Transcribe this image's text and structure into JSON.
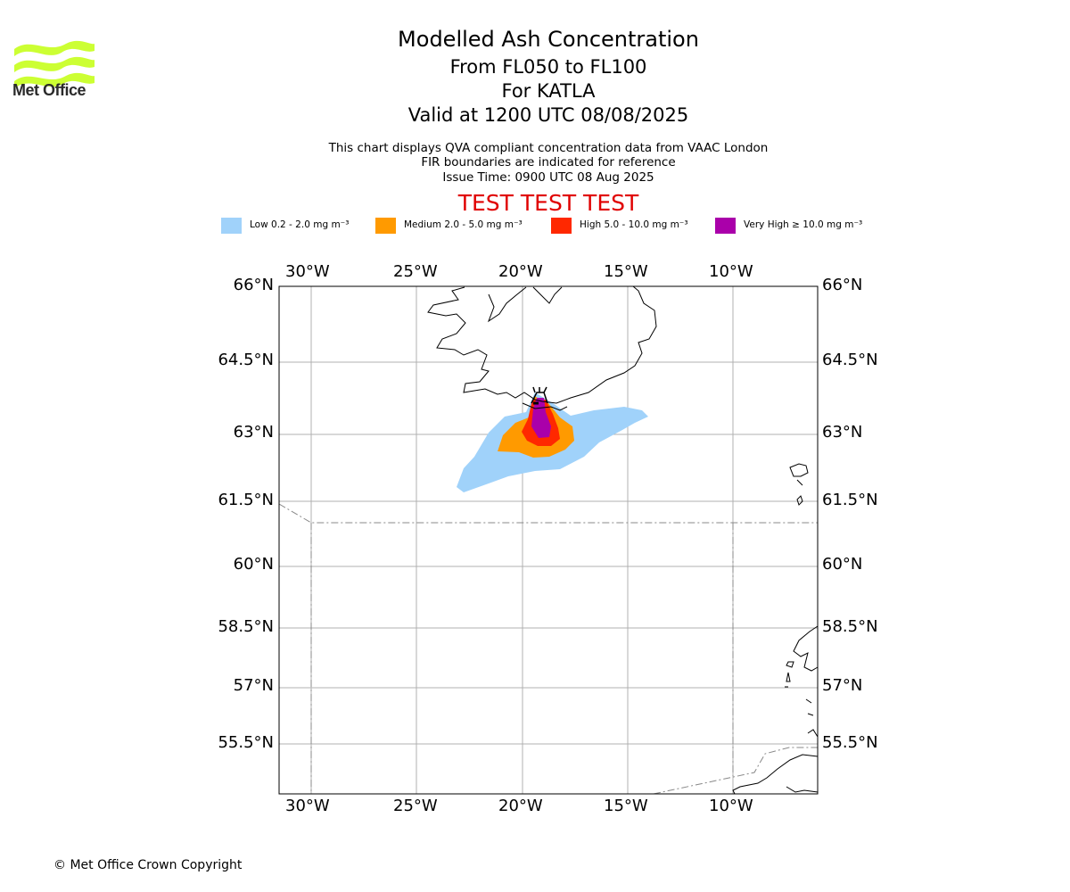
{
  "brand": {
    "logo_text": "Met Office",
    "logo_color": "#ccff33"
  },
  "title": "Modelled Ash Concentration",
  "subtitle_lines": [
    "From FL050 to FL100",
    "For KATLA",
    "Valid at 1200 UTC 08/08/2025"
  ],
  "notes": [
    "This chart displays QVA compliant concentration data from VAAC London",
    "FIR boundaries are indicated for reference",
    "Issue Time: 0900 UTC 08 Aug 2025"
  ],
  "test_banner": "TEST TEST TEST",
  "legend": [
    {
      "label": "Low 0.2 - 2.0 mg m⁻³",
      "color": "#a0d2fa"
    },
    {
      "label": "Medium 2.0 - 5.0 mg m⁻³",
      "color": "#ff9a00"
    },
    {
      "label": "High 5.0 - 10.0 mg m⁻³",
      "color": "#ff2800"
    },
    {
      "label": "Very High  ≥  10.0 mg m⁻³",
      "color": "#aa00aa"
    }
  ],
  "map": {
    "lon_ticks": [
      "30°W",
      "25°W",
      "20°W",
      "15°W",
      "10°W"
    ],
    "lat_ticks": [
      "66°N",
      "64.5°N",
      "63°N",
      "61.5°N",
      "60°N",
      "58.5°N",
      "57°N",
      "55.5°N"
    ],
    "volcano": "KATLA"
  },
  "footer": {
    "copyright": "© Met Office Crown Copyright"
  }
}
